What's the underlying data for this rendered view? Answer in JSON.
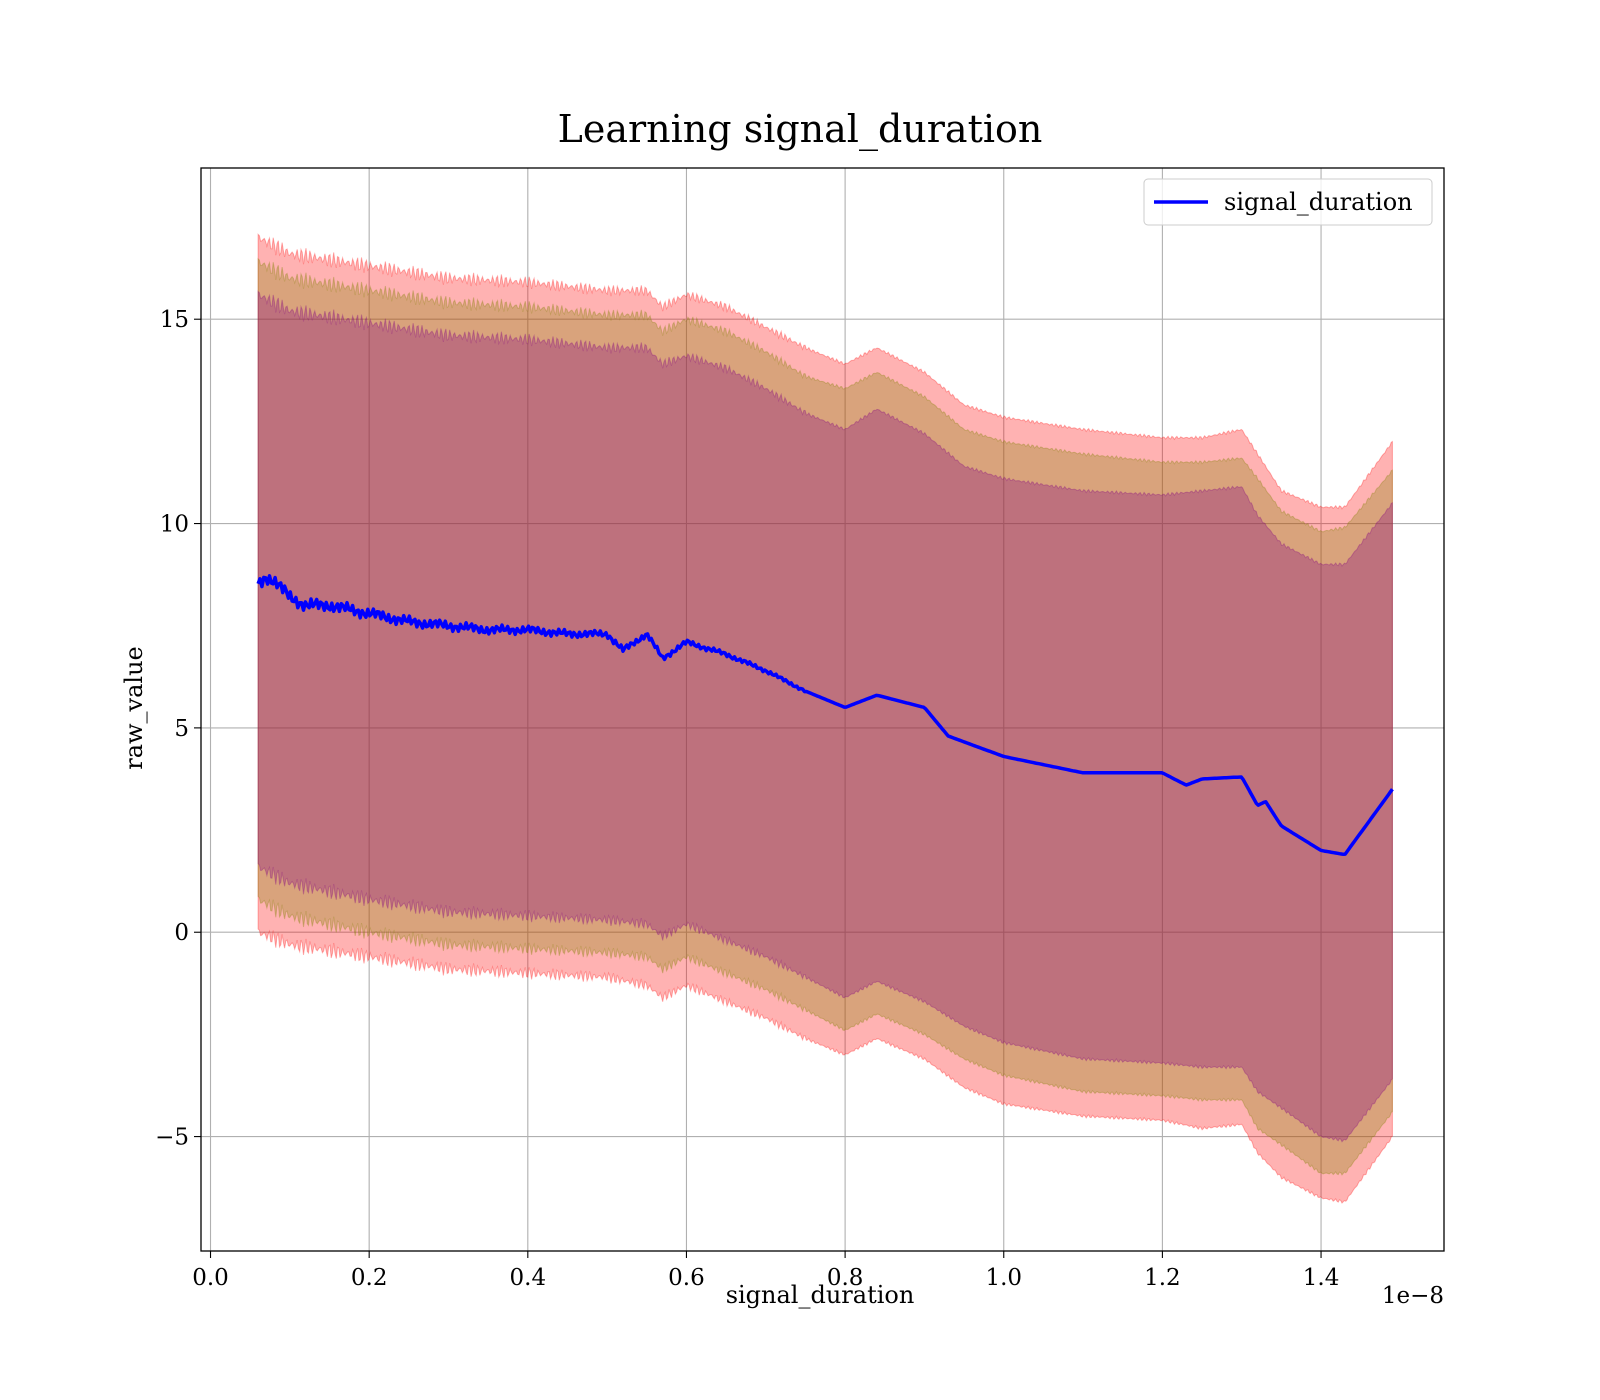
{
  "chart_data": {
    "type": "line",
    "title": "Learning signal_duration",
    "xlabel": "signal_duration",
    "ylabel": "raw_value",
    "x_offset_label": "1e−8",
    "xlim": [
      -0.012,
      1.555
    ],
    "ylim": [
      -7.8,
      18.7
    ],
    "xticks": [
      0.0,
      0.2,
      0.4,
      0.6,
      0.8,
      1.0,
      1.2,
      1.4
    ],
    "xtick_labels": [
      "0.0",
      "0.2",
      "0.4",
      "0.6",
      "0.8",
      "1.0",
      "1.2",
      "1.4"
    ],
    "yticks": [
      -5,
      0,
      5,
      10,
      15
    ],
    "ytick_labels": [
      "−5",
      "0",
      "5",
      "10",
      "15"
    ],
    "grid": true,
    "legend": {
      "position": "upper right",
      "entries": [
        "signal_duration"
      ]
    },
    "series": [
      {
        "name": "signal_duration",
        "color": "#0000ff",
        "x": [
          0.06,
          0.07,
          0.08,
          0.1,
          0.12,
          0.15,
          0.2,
          0.25,
          0.3,
          0.35,
          0.4,
          0.45,
          0.5,
          0.52,
          0.55,
          0.57,
          0.6,
          0.65,
          0.7,
          0.75,
          0.8,
          0.84,
          0.9,
          0.93,
          1.0,
          1.05,
          1.1,
          1.15,
          1.2,
          1.23,
          1.25,
          1.3,
          1.32,
          1.33,
          1.35,
          1.4,
          1.43,
          1.49
        ],
        "y": [
          8.5,
          8.7,
          8.6,
          8.2,
          8.0,
          8.0,
          7.8,
          7.6,
          7.5,
          7.4,
          7.4,
          7.3,
          7.3,
          6.9,
          7.3,
          6.7,
          7.1,
          6.8,
          6.4,
          5.9,
          5.5,
          5.8,
          5.5,
          4.8,
          4.3,
          4.1,
          3.9,
          3.9,
          3.9,
          3.6,
          3.75,
          3.8,
          3.1,
          3.2,
          2.6,
          2.0,
          1.9,
          3.5
        ]
      }
    ],
    "bands": {
      "x": [
        0.06,
        0.1,
        0.2,
        0.3,
        0.4,
        0.5,
        0.55,
        0.57,
        0.6,
        0.65,
        0.7,
        0.75,
        0.8,
        0.84,
        0.9,
        0.95,
        1.0,
        1.1,
        1.2,
        1.25,
        1.3,
        1.32,
        1.35,
        1.4,
        1.43,
        1.49
      ],
      "upper_outer": [
        17.0,
        16.6,
        16.3,
        16.0,
        15.9,
        15.7,
        15.7,
        15.3,
        15.6,
        15.3,
        14.8,
        14.3,
        13.9,
        14.3,
        13.7,
        12.9,
        12.6,
        12.3,
        12.1,
        12.1,
        12.3,
        11.7,
        10.8,
        10.4,
        10.4,
        12.0
      ],
      "upper_mid": [
        16.4,
        16.0,
        15.7,
        15.4,
        15.3,
        15.1,
        15.1,
        14.7,
        15.0,
        14.7,
        14.2,
        13.6,
        13.3,
        13.7,
        13.1,
        12.3,
        12.0,
        11.7,
        11.5,
        11.5,
        11.6,
        11.1,
        10.3,
        9.8,
        9.9,
        11.3
      ],
      "upper_inner": [
        15.6,
        15.2,
        14.9,
        14.6,
        14.5,
        14.3,
        14.3,
        13.9,
        14.1,
        13.8,
        13.3,
        12.7,
        12.3,
        12.8,
        12.2,
        11.4,
        11.1,
        10.8,
        10.7,
        10.8,
        10.9,
        10.2,
        9.5,
        9.0,
        9.0,
        10.5
      ],
      "lower_inner": [
        1.6,
        1.2,
        0.8,
        0.5,
        0.4,
        0.3,
        0.2,
        -0.1,
        0.2,
        -0.2,
        -0.6,
        -1.1,
        -1.6,
        -1.2,
        -1.7,
        -2.3,
        -2.7,
        -3.1,
        -3.2,
        -3.3,
        -3.3,
        -3.9,
        -4.3,
        -5.0,
        -5.1,
        -3.6
      ],
      "lower_mid": [
        0.8,
        0.4,
        0.0,
        -0.3,
        -0.4,
        -0.5,
        -0.6,
        -0.9,
        -0.6,
        -1.0,
        -1.4,
        -1.9,
        -2.4,
        -2.0,
        -2.5,
        -3.1,
        -3.5,
        -3.9,
        -4.0,
        -4.1,
        -4.1,
        -4.8,
        -5.2,
        -5.9,
        -5.9,
        -4.4
      ],
      "lower_outer": [
        0.0,
        -0.3,
        -0.6,
        -0.9,
        -1.0,
        -1.1,
        -1.3,
        -1.6,
        -1.3,
        -1.7,
        -2.1,
        -2.6,
        -3.0,
        -2.6,
        -3.1,
        -3.8,
        -4.2,
        -4.5,
        -4.6,
        -4.8,
        -4.7,
        -5.4,
        -6.0,
        -6.5,
        -6.6,
        -5.0
      ],
      "outer_color": "#ff0000",
      "mid_color": "#808000",
      "inner_color": "#800080"
    }
  }
}
